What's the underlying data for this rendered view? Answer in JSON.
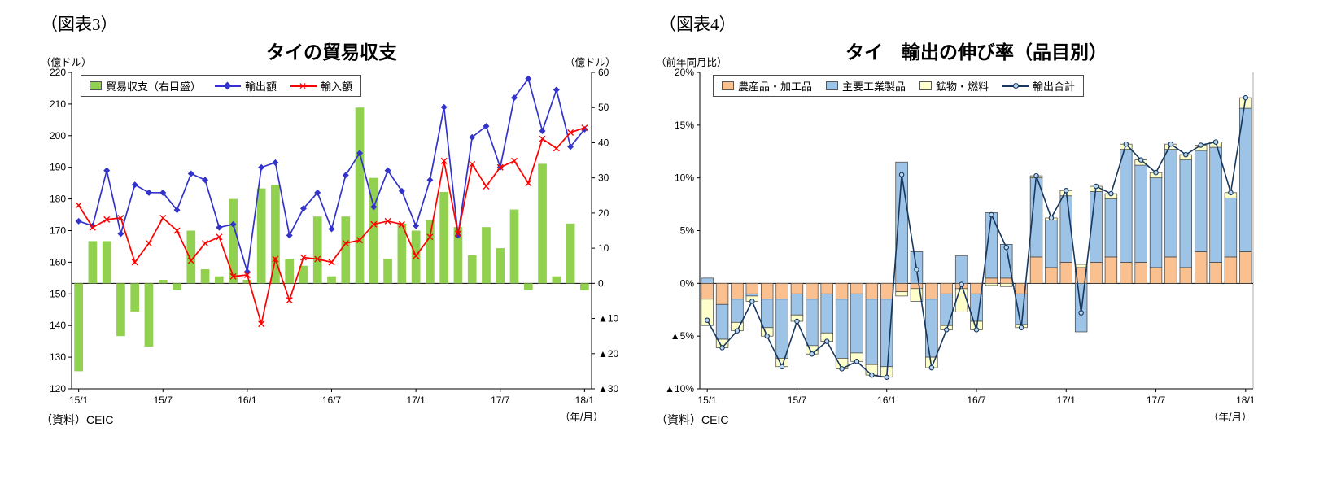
{
  "fig3": {
    "tag": "（図表3）",
    "unit_left": "（億ドル）",
    "unit_right": "（億ドル）",
    "source": "（資料）CEIC",
    "axis_unit": "（年/月）"
  },
  "fig4": {
    "tag": "（図表4）",
    "unit_left": "（前年同月比）",
    "source": "（資料）CEIC",
    "axis_unit": "（年/月）"
  },
  "chart_data": [
    {
      "id": "thailand-trade-balance",
      "type": "bar",
      "title": "タイの貿易収支",
      "legend_position": "top",
      "grid": false,
      "x_tick_interval": 6,
      "x_tick_labels": [
        "15/1",
        "15/7",
        "16/1",
        "16/7",
        "17/1",
        "17/7",
        "18/1"
      ],
      "left_axis": {
        "min": 120,
        "max": 220,
        "step": 10,
        "unit": "億ドル"
      },
      "right_axis": {
        "min": -30,
        "max": 60,
        "step": 10,
        "unit": "億ドル",
        "negative_mark": "▲"
      },
      "x": [
        "15/1",
        "15/2",
        "15/3",
        "15/4",
        "15/5",
        "15/6",
        "15/7",
        "15/8",
        "15/9",
        "15/10",
        "15/11",
        "15/12",
        "16/1",
        "16/2",
        "16/3",
        "16/4",
        "16/5",
        "16/6",
        "16/7",
        "16/8",
        "16/9",
        "16/10",
        "16/11",
        "16/12",
        "17/1",
        "17/2",
        "17/3",
        "17/4",
        "17/5",
        "17/6",
        "17/7",
        "17/8",
        "17/9",
        "17/10",
        "17/11",
        "17/12",
        "18/1"
      ],
      "series": [
        {
          "name": "貿易収支（右目盛）",
          "type": "bar",
          "axis": "right",
          "color": "#92D050",
          "values": [
            -25,
            12,
            12,
            -15,
            -8,
            -18,
            1,
            -2,
            15,
            4,
            2,
            24,
            1,
            27,
            28,
            7,
            5,
            19,
            2,
            19,
            50,
            30,
            7,
            17,
            15,
            18,
            26,
            16,
            8,
            16,
            10,
            21,
            -2,
            34,
            2,
            17,
            -2
          ]
        },
        {
          "name": "輸出額",
          "type": "line",
          "marker": "diamond",
          "axis": "left",
          "color": "#3333CC",
          "values": [
            173,
            171.5,
            189,
            169,
            184.5,
            182,
            182,
            176.5,
            188,
            186,
            171,
            172,
            157,
            190,
            191.5,
            168.5,
            177,
            182,
            170.5,
            187.5,
            194.5,
            177.5,
            189,
            182.5,
            171.5,
            186,
            209,
            168.5,
            199.5,
            203,
            190,
            212,
            218,
            201.5,
            214.5,
            196.5,
            202
          ]
        },
        {
          "name": "輸入額",
          "type": "line",
          "marker": "x",
          "axis": "left",
          "color": "#FF0000",
          "values": [
            178,
            171,
            173.5,
            174,
            160,
            166,
            174,
            170,
            160.5,
            166,
            168,
            155.5,
            156,
            140.5,
            161,
            148,
            161.5,
            161,
            160,
            166,
            167,
            172,
            173,
            172,
            162,
            168,
            192,
            169,
            191,
            184,
            190,
            192,
            185,
            199,
            196,
            201,
            202.5
          ]
        }
      ]
    },
    {
      "id": "thailand-export-growth-by-category",
      "type": "bar",
      "stacked": true,
      "title": "タイ　輸出の伸び率（品目別）",
      "legend_position": "top",
      "grid": false,
      "x_tick_interval": 6,
      "x_tick_labels": [
        "15/1",
        "15/7",
        "16/1",
        "16/7",
        "17/1",
        "17/7",
        "18/1"
      ],
      "y_axis": {
        "min": -10,
        "max": 20,
        "step": 5,
        "format": "percent",
        "negative_mark": "▲"
      },
      "x": [
        "15/1",
        "15/2",
        "15/3",
        "15/4",
        "15/5",
        "15/6",
        "15/7",
        "15/8",
        "15/9",
        "15/10",
        "15/11",
        "15/12",
        "16/1",
        "16/2",
        "16/3",
        "16/4",
        "16/5",
        "16/6",
        "16/7",
        "16/8",
        "16/9",
        "16/10",
        "16/11",
        "16/12",
        "17/1",
        "17/2",
        "17/3",
        "17/4",
        "17/5",
        "17/6",
        "17/7",
        "17/8",
        "17/9",
        "17/10",
        "17/11",
        "17/12",
        "18/1"
      ],
      "series": [
        {
          "name": "農産品・加工品",
          "type": "bar",
          "color": "#FAC090",
          "values": [
            -1.5,
            -2.0,
            -1.5,
            -1.0,
            -1.5,
            -1.5,
            -1.0,
            -1.5,
            -1.0,
            -1.5,
            -1.0,
            -1.5,
            -1.5,
            -0.8,
            -0.5,
            -1.5,
            -1.0,
            -0.5,
            -1.0,
            0.5,
            0.5,
            -1.0,
            2.5,
            1.5,
            2.0,
            1.5,
            2.0,
            2.5,
            2.0,
            2.0,
            1.5,
            2.5,
            1.5,
            3.0,
            2.0,
            2.5,
            3.0
          ]
        },
        {
          "name": "主要工業製品",
          "type": "bar",
          "color": "#9DC3E6",
          "values": [
            0.5,
            -3.3,
            -2.2,
            -0.2,
            -2.7,
            -5.6,
            -2.0,
            -4.4,
            -3.7,
            -5.6,
            -5.6,
            -6.2,
            -6.4,
            11.5,
            3.0,
            -5.5,
            -3.0,
            2.6,
            -2.6,
            6.2,
            3.2,
            -2.9,
            7.5,
            4.5,
            6.3,
            -4.6,
            6.7,
            5.5,
            10.7,
            9.2,
            8.5,
            10.2,
            10.2,
            9.6,
            10.9,
            5.6,
            13.6
          ]
        },
        {
          "name": "鉱物・燃料",
          "type": "bar",
          "color": "#FFFFCC",
          "values": [
            -2.5,
            -0.8,
            -0.8,
            -0.5,
            -0.8,
            -0.8,
            -0.6,
            -0.8,
            -0.8,
            -1.0,
            -0.8,
            -1.0,
            -1.0,
            -0.4,
            -1.2,
            -1.0,
            -0.4,
            -2.2,
            -0.8,
            -0.2,
            -0.3,
            -0.3,
            0.2,
            0.2,
            0.5,
            0.3,
            0.5,
            0.5,
            0.5,
            0.5,
            0.5,
            0.5,
            0.5,
            0.5,
            0.5,
            0.5,
            1.0
          ]
        },
        {
          "name": "輸出合計",
          "type": "line",
          "marker": "circle",
          "color": "#17375E",
          "marker_fill": "#BDD7EE",
          "values": [
            -3.5,
            -6.1,
            -4.5,
            -1.7,
            -5.0,
            -7.9,
            -3.6,
            -6.7,
            -5.5,
            -8.1,
            -7.4,
            -8.7,
            -8.9,
            10.3,
            1.3,
            -8.0,
            -4.4,
            -0.1,
            -4.4,
            6.5,
            3.4,
            -4.2,
            10.2,
            6.2,
            8.8,
            -2.8,
            9.2,
            8.5,
            13.2,
            11.7,
            10.5,
            13.2,
            12.2,
            13.1,
            13.4,
            8.6,
            17.6
          ]
        }
      ]
    }
  ]
}
